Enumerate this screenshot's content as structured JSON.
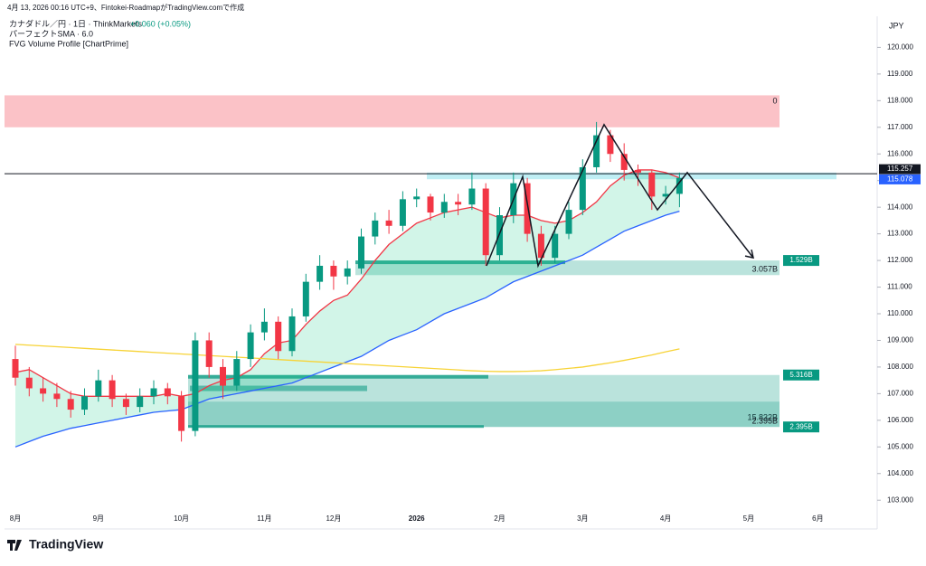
{
  "header": {
    "credit": "4月 13, 2026 00:16 UTC+9、Fintokei-RoadmapがTradingView.comで作成",
    "symbol": "カナダドル／円 · 1日 · ThinkMarkets",
    "change": "+0.060 (+0.05%)",
    "indicator1": "パーフェクトSMA · 6.0",
    "indicator2": "FVG Volume Profile [ChartPrime]",
    "brand": "TradingView"
  },
  "chart_data": {
    "type": "candlestick",
    "currency": "JPY",
    "categories": [
      "8月",
      null,
      null,
      null,
      null,
      null,
      "9月",
      null,
      null,
      null,
      null,
      null,
      "10月",
      null,
      null,
      null,
      null,
      null,
      "11月",
      null,
      null,
      null,
      null,
      "12月",
      null,
      null,
      null,
      null,
      null,
      "2026",
      null,
      null,
      null,
      null,
      null,
      "2月",
      null,
      null,
      null,
      null,
      null,
      "3月",
      null,
      null,
      null,
      null,
      null,
      "4月",
      null,
      null,
      null,
      null,
      null,
      "5月",
      null,
      null,
      null,
      null,
      "6月"
    ],
    "open": [
      108.3,
      107.6,
      107.2,
      107.0,
      106.8,
      106.4,
      106.9,
      107.5,
      106.8,
      106.5,
      106.9,
      107.2,
      106.9,
      105.6,
      109.0,
      108.0,
      107.3,
      108.3,
      109.3,
      109.7,
      108.6,
      109.9,
      111.2,
      111.8,
      111.4,
      111.7,
      112.9,
      113.5,
      113.3,
      114.3,
      114.4,
      113.8,
      114.2,
      114.1,
      114.7,
      112.2,
      113.7,
      114.9,
      113.0,
      112.1,
      113.0,
      113.9,
      115.5,
      116.7,
      116.0,
      115.4,
      115.3,
      114.4,
      114.5,
      null,
      null,
      null,
      null,
      null,
      null,
      null,
      null,
      null,
      null
    ],
    "high": [
      108.8,
      108.0,
      107.6,
      107.4,
      107.1,
      107.2,
      107.9,
      107.7,
      107.0,
      107.2,
      107.5,
      107.4,
      107.1,
      109.3,
      109.3,
      108.3,
      108.6,
      109.6,
      110.2,
      109.9,
      110.2,
      111.5,
      112.2,
      112.0,
      112.0,
      113.2,
      113.8,
      113.9,
      114.6,
      114.7,
      114.5,
      114.5,
      114.5,
      115.3,
      114.9,
      114.0,
      115.3,
      115.1,
      113.3,
      113.3,
      114.2,
      115.8,
      117.2,
      116.9,
      116.4,
      115.6,
      115.4,
      114.8,
      115.3,
      null,
      null,
      null,
      null,
      null,
      null,
      null,
      null,
      null,
      null
    ],
    "low": [
      107.3,
      106.9,
      106.7,
      106.5,
      106.1,
      106.2,
      106.7,
      106.5,
      106.2,
      106.3,
      106.6,
      106.6,
      105.2,
      105.4,
      107.6,
      106.8,
      107.1,
      108.0,
      109.0,
      108.3,
      108.4,
      109.7,
      110.9,
      110.9,
      111.1,
      111.5,
      112.6,
      113.0,
      113.1,
      114.0,
      113.5,
      113.6,
      113.7,
      113.9,
      111.8,
      112.0,
      113.4,
      112.7,
      111.8,
      111.9,
      112.8,
      113.7,
      115.3,
      115.7,
      115.0,
      114.8,
      113.9,
      114.1,
      114.0,
      null,
      null,
      null,
      null,
      null,
      null,
      null,
      null,
      null,
      null
    ],
    "close": [
      107.6,
      107.2,
      107.0,
      106.8,
      106.4,
      106.9,
      107.5,
      106.8,
      106.5,
      106.9,
      107.2,
      106.9,
      105.6,
      109.0,
      108.0,
      107.3,
      108.3,
      109.3,
      109.7,
      108.6,
      109.9,
      111.2,
      111.8,
      111.4,
      111.7,
      112.9,
      113.5,
      113.3,
      114.3,
      114.4,
      113.8,
      114.2,
      114.1,
      114.7,
      112.2,
      113.7,
      114.9,
      113.0,
      112.1,
      113.0,
      113.9,
      115.5,
      116.7,
      116.0,
      115.4,
      115.3,
      114.4,
      114.5,
      115.1,
      null,
      null,
      null,
      null,
      null,
      null,
      null,
      null,
      null,
      null
    ],
    "up_color": "#089981",
    "down_color": "#f23645",
    "lines": [
      {
        "color": "#f23645",
        "values": [
          107.8,
          107.9,
          107.6,
          107.3,
          107.0,
          106.9,
          106.9,
          106.9,
          106.9,
          106.9,
          106.9,
          107.0,
          106.9,
          107.0,
          107.3,
          107.5,
          107.6,
          107.9,
          108.5,
          108.9,
          109.0,
          109.6,
          110.1,
          110.5,
          110.7,
          111.3,
          112.0,
          112.6,
          113.0,
          113.4,
          113.6,
          113.8,
          113.9,
          114.0,
          113.8,
          113.6,
          113.7,
          113.7,
          113.5,
          113.4,
          113.5,
          113.8,
          114.2,
          114.8,
          115.2,
          115.4,
          115.4,
          115.3,
          115.1,
          null,
          null,
          null,
          null,
          null,
          null,
          null,
          null,
          null,
          null
        ]
      },
      {
        "color": "#2962ff",
        "values": [
          105.0,
          105.2,
          105.4,
          105.55,
          105.7,
          105.8,
          105.9,
          106.0,
          106.1,
          106.2,
          106.3,
          106.35,
          106.4,
          106.6,
          106.8,
          106.9,
          107.0,
          107.1,
          107.2,
          107.3,
          107.4,
          107.6,
          107.8,
          108.0,
          108.2,
          108.4,
          108.7,
          109.0,
          109.2,
          109.4,
          109.7,
          110.0,
          110.2,
          110.4,
          110.6,
          110.9,
          111.2,
          111.4,
          111.6,
          111.8,
          112.0,
          112.2,
          112.5,
          112.8,
          113.1,
          113.3,
          113.5,
          113.7,
          113.85,
          null,
          null,
          null,
          null,
          null,
          null,
          null,
          null,
          null,
          null
        ]
      },
      {
        "color": "#f7d336",
        "values": [
          108.85,
          108.82,
          108.79,
          108.76,
          108.73,
          108.7,
          108.67,
          108.64,
          108.61,
          108.58,
          108.55,
          108.52,
          108.49,
          108.46,
          108.43,
          108.4,
          108.37,
          108.34,
          108.31,
          108.28,
          108.25,
          108.22,
          108.19,
          108.16,
          108.13,
          108.1,
          108.07,
          108.04,
          108.01,
          107.98,
          107.95,
          107.92,
          107.89,
          107.86,
          107.84,
          107.83,
          107.83,
          107.84,
          107.86,
          107.9,
          107.95,
          108.0,
          108.08,
          108.16,
          108.25,
          108.35,
          108.45,
          108.57,
          108.68,
          null,
          null,
          null,
          null,
          null,
          null,
          null,
          null,
          null,
          null
        ]
      }
    ],
    "ylim": [
      102.6,
      121.1
    ],
    "yticks": [
      {
        "value": 103,
        "label": "103.000"
      },
      {
        "value": 104,
        "label": "104.000"
      },
      {
        "value": 105,
        "label": "105.000"
      },
      {
        "value": 106,
        "label": "106.000"
      },
      {
        "value": 107,
        "label": "107.000"
      },
      {
        "value": 108,
        "label": "108.000"
      },
      {
        "value": 109,
        "label": "109.000"
      },
      {
        "value": 110,
        "label": "110.000"
      },
      {
        "value": 111,
        "label": "111.000"
      },
      {
        "value": 112,
        "label": "112.000"
      },
      {
        "value": 113,
        "label": "113.000"
      },
      {
        "value": 114,
        "label": "114.000"
      },
      {
        "value": 115,
        "label": "115.000"
      },
      {
        "value": 116,
        "label": "116.000"
      },
      {
        "value": 117,
        "label": "117.000"
      },
      {
        "value": 118,
        "label": "118.000"
      },
      {
        "value": 119,
        "label": "119.000"
      },
      {
        "value": 120,
        "label": "120.000"
      }
    ],
    "price_line": 115.257,
    "price_labels": [
      115.257,
      115.078
    ],
    "supply_zone": {
      "top": 118.2,
      "bottom": 117.0,
      "label": "0"
    },
    "cyan_zone": {
      "top": 115.3,
      "bottom": 115.05
    },
    "fvg_zones": [
      {
        "top": 112.0,
        "bottom": 111.45,
        "tag": "1.529B",
        "text": "3.057B"
      },
      {
        "top": 107.7,
        "bottom": 105.75,
        "tag": "5.316B",
        "text": "15.832B"
      }
    ],
    "fvg_bottom": {
      "tag": "2.395B",
      "text": "2.395B"
    },
    "pattern": [
      111.8,
      115.15,
      111.8,
      117.1,
      113.9,
      115.3,
      112.1
    ]
  }
}
